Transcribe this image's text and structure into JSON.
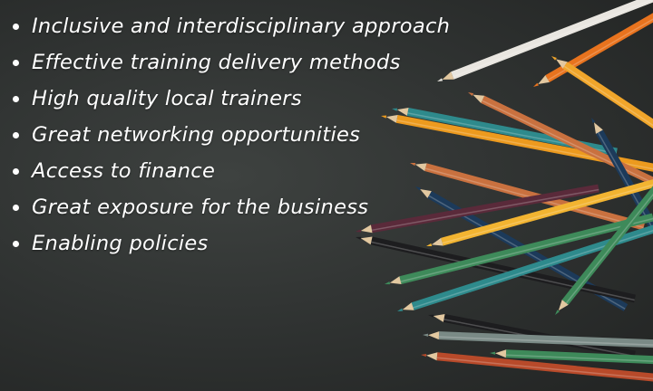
{
  "bullets": [
    {
      "text": "Inclusive and interdisciplinary approach"
    },
    {
      "text": "Effective training delivery methods"
    },
    {
      "text": "High quality local trainers"
    },
    {
      "text": "Great networking opportunities"
    },
    {
      "text": "Access to finance"
    },
    {
      "text": "Great exposure for the business"
    },
    {
      "text": "Enabling policies"
    }
  ],
  "background": {
    "board_color": "#2e3130",
    "text_color": "#ffffff",
    "pencil_colors": [
      "#e9e6e0",
      "#e8731e",
      "#f0a52a",
      "#ec9a1e",
      "#2e8a8c",
      "#c9713f",
      "#1c3a5a",
      "#5a2a3a",
      "#f2b431",
      "#3e8a5a",
      "#1d1d1f",
      "#7a8a86",
      "#b84a2a"
    ]
  }
}
